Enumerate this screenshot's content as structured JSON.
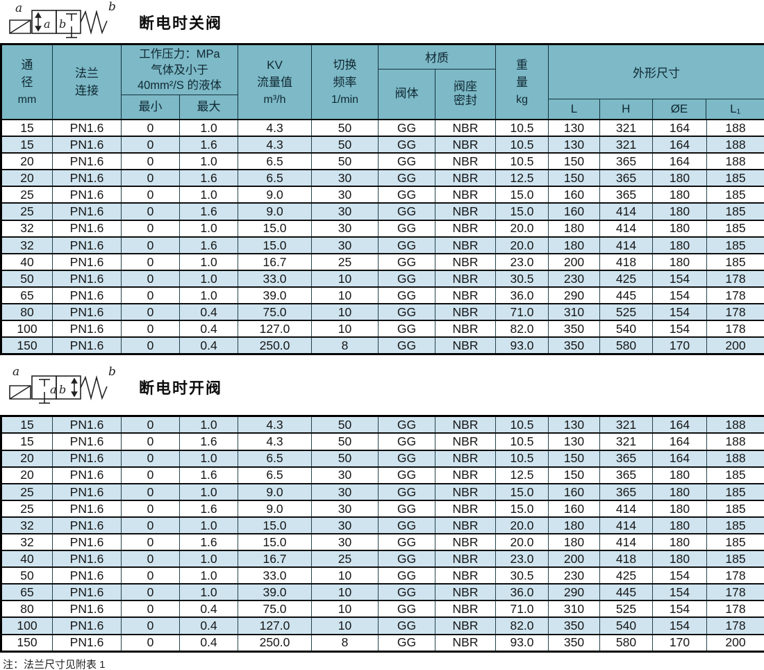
{
  "colors": {
    "header_bg": "#7db9c7",
    "stripe_bg": "#cfe4ef",
    "border_dark": "#0d0d0d",
    "border_teal": "#14323d"
  },
  "symbols": {
    "port_a": "a",
    "port_b": "b",
    "inner_a": "a",
    "inner_b": "b"
  },
  "header": {
    "diameter_l1": "通",
    "diameter_l2": "径",
    "diameter_l3": "mm",
    "flange_l1": "法兰",
    "flange_l2": "连接",
    "pressure_l1": "工作压力：MPa",
    "pressure_l2": "气体及小于",
    "pressure_l3": "40mm²/S 的液体",
    "pressure_min": "最小",
    "pressure_max": "最大",
    "kv_l1": "KV",
    "kv_l2": "流量值",
    "kv_l3": "m³/h",
    "freq_l1": "切换",
    "freq_l2": "频率",
    "freq_l3": "1/min",
    "material_title": "材质",
    "material_body": "阀体",
    "material_seat_l1": "阀座",
    "material_seat_l2": "密封",
    "weight_l1": "重",
    "weight_l2": "量",
    "weight_l3": "kg",
    "dims_title": "外形尺寸",
    "dims_L": "L",
    "dims_H": "H",
    "dims_OE": "ØE",
    "dims_L1": "L₁"
  },
  "sections": [
    {
      "title": "断电时关阀",
      "rows": [
        [
          "15",
          "PN1.6",
          "0",
          "1.0",
          "4.3",
          "50",
          "GG",
          "NBR",
          "10.5",
          "130",
          "321",
          "164",
          "188"
        ],
        [
          "15",
          "PN1.6",
          "0",
          "1.6",
          "4.3",
          "50",
          "GG",
          "NBR",
          "10.5",
          "130",
          "321",
          "164",
          "188"
        ],
        [
          "20",
          "PN1.6",
          "0",
          "1.0",
          "6.5",
          "50",
          "GG",
          "NBR",
          "10.5",
          "150",
          "365",
          "164",
          "188"
        ],
        [
          "20",
          "PN1.6",
          "0",
          "1.6",
          "6.5",
          "30",
          "GG",
          "NBR",
          "12.5",
          "150",
          "365",
          "180",
          "185"
        ],
        [
          "25",
          "PN1.6",
          "0",
          "1.0",
          "9.0",
          "30",
          "GG",
          "NBR",
          "15.0",
          "160",
          "365",
          "180",
          "185"
        ],
        [
          "25",
          "PN1.6",
          "0",
          "1.6",
          "9.0",
          "30",
          "GG",
          "NBR",
          "15.0",
          "160",
          "414",
          "180",
          "185"
        ],
        [
          "32",
          "PN1.6",
          "0",
          "1.0",
          "15.0",
          "30",
          "GG",
          "NBR",
          "20.0",
          "180",
          "414",
          "180",
          "185"
        ],
        [
          "32",
          "PN1.6",
          "0",
          "1.6",
          "15.0",
          "30",
          "GG",
          "NBR",
          "20.0",
          "180",
          "414",
          "180",
          "185"
        ],
        [
          "40",
          "PN1.6",
          "0",
          "1.0",
          "16.7",
          "25",
          "GG",
          "NBR",
          "23.0",
          "200",
          "418",
          "180",
          "185"
        ],
        [
          "50",
          "PN1.6",
          "0",
          "1.0",
          "33.0",
          "10",
          "GG",
          "NBR",
          "30.5",
          "230",
          "425",
          "154",
          "178"
        ],
        [
          "65",
          "PN1.6",
          "0",
          "1.0",
          "39.0",
          "10",
          "GG",
          "NBR",
          "36.0",
          "290",
          "445",
          "154",
          "178"
        ],
        [
          "80",
          "PN1.6",
          "0",
          "0.4",
          "75.0",
          "10",
          "GG",
          "NBR",
          "71.0",
          "310",
          "525",
          "154",
          "178"
        ],
        [
          "100",
          "PN1.6",
          "0",
          "0.4",
          "127.0",
          "10",
          "GG",
          "NBR",
          "82.0",
          "350",
          "540",
          "154",
          "178"
        ],
        [
          "150",
          "PN1.6",
          "0",
          "0.4",
          "250.0",
          "8",
          "GG",
          "NBR",
          "93.0",
          "350",
          "580",
          "170",
          "200"
        ]
      ]
    },
    {
      "title": "断电时开阀",
      "rows": [
        [
          "15",
          "PN1.6",
          "0",
          "1.0",
          "4.3",
          "50",
          "GG",
          "NBR",
          "10.5",
          "130",
          "321",
          "164",
          "188"
        ],
        [
          "15",
          "PN1.6",
          "0",
          "1.6",
          "4.3",
          "50",
          "GG",
          "NBR",
          "10.5",
          "130",
          "321",
          "164",
          "188"
        ],
        [
          "20",
          "PN1.6",
          "0",
          "1.0",
          "6.5",
          "50",
          "GG",
          "NBR",
          "10.5",
          "150",
          "365",
          "164",
          "188"
        ],
        [
          "20",
          "PN1.6",
          "0",
          "1.6",
          "6.5",
          "30",
          "GG",
          "NBR",
          "12.5",
          "150",
          "365",
          "180",
          "185"
        ],
        [
          "25",
          "PN1.6",
          "0",
          "1.0",
          "9.0",
          "30",
          "GG",
          "NBR",
          "15.0",
          "160",
          "365",
          "180",
          "185"
        ],
        [
          "25",
          "PN1.6",
          "0",
          "1.6",
          "9.0",
          "30",
          "GG",
          "NBR",
          "15.0",
          "160",
          "414",
          "180",
          "185"
        ],
        [
          "32",
          "PN1.6",
          "0",
          "1.0",
          "15.0",
          "30",
          "GG",
          "NBR",
          "20.0",
          "180",
          "414",
          "180",
          "185"
        ],
        [
          "32",
          "PN1.6",
          "0",
          "1.6",
          "15.0",
          "30",
          "GG",
          "NBR",
          "20.0",
          "180",
          "414",
          "180",
          "185"
        ],
        [
          "40",
          "PN1.6",
          "0",
          "1.0",
          "16.7",
          "25",
          "GG",
          "NBR",
          "23.0",
          "200",
          "418",
          "180",
          "185"
        ],
        [
          "50",
          "PN1.6",
          "0",
          "1.0",
          "33.0",
          "10",
          "GG",
          "NBR",
          "30.5",
          "230",
          "425",
          "154",
          "178"
        ],
        [
          "65",
          "PN1.6",
          "0",
          "1.0",
          "39.0",
          "10",
          "GG",
          "NBR",
          "36.0",
          "290",
          "445",
          "154",
          "178"
        ],
        [
          "80",
          "PN1.6",
          "0",
          "0.4",
          "75.0",
          "10",
          "GG",
          "NBR",
          "71.0",
          "310",
          "525",
          "154",
          "178"
        ],
        [
          "100",
          "PN1.6",
          "0",
          "0.4",
          "127.0",
          "10",
          "GG",
          "NBR",
          "82.0",
          "350",
          "540",
          "154",
          "178"
        ],
        [
          "150",
          "PN1.6",
          "0",
          "0.4",
          "250.0",
          "8",
          "GG",
          "NBR",
          "93.0",
          "350",
          "580",
          "170",
          "200"
        ]
      ]
    }
  ],
  "note": "注：法兰尺寸见附表 1"
}
